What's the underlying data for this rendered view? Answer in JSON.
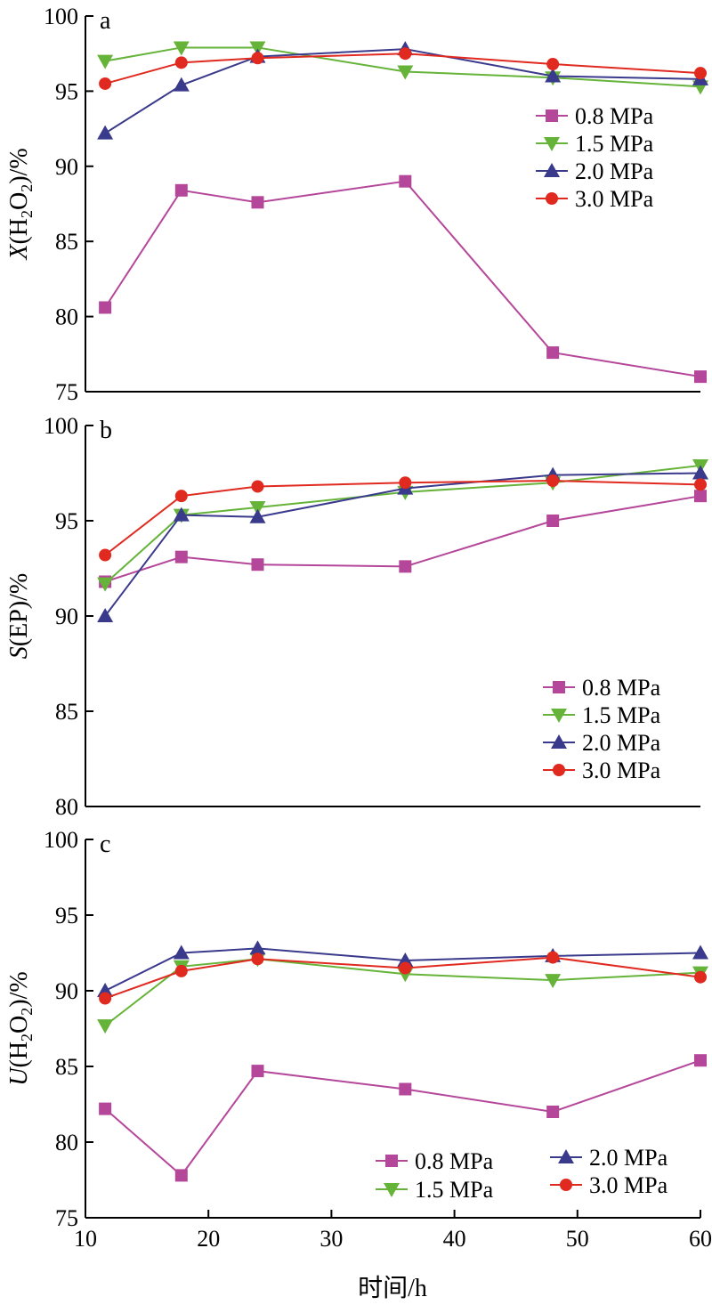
{
  "chart_data": {
    "type": "line",
    "xlabel": "时间/h",
    "xlim": [
      10,
      60
    ],
    "xticks": [
      10,
      20,
      30,
      40,
      50,
      60
    ],
    "x": [
      11.6,
      17.8,
      24,
      36,
      48,
      60
    ],
    "colors": {
      "0.8 MPa": "#b5479b",
      "1.5 MPa": "#66b33a",
      "2.0 MPa": "#3a3a8c",
      "3.0 MPa": "#e0291f"
    },
    "markers": {
      "0.8 MPa": "square",
      "1.5 MPa": "triangle-down",
      "2.0 MPa": "triangle-up",
      "3.0 MPa": "circle"
    },
    "panels": [
      {
        "letter": "a",
        "ylabel_var": "X",
        "ylabel_rest": "(H",
        "ylabel_sub1": "2",
        "ylabel_mid": "O",
        "ylabel_sub2": "2",
        "ylabel_end": ")/%",
        "ylim": [
          75,
          100
        ],
        "yticks": [
          75,
          80,
          85,
          90,
          95,
          100
        ],
        "legend_placement": "right",
        "series": [
          {
            "name": "0.8 MPa",
            "values": [
              80.6,
              88.4,
              87.6,
              89.0,
              77.6,
              76.0
            ]
          },
          {
            "name": "1.5 MPa",
            "values": [
              97.0,
              97.9,
              97.9,
              96.3,
              95.9,
              95.3
            ]
          },
          {
            "name": "2.0 MPa",
            "values": [
              92.2,
              95.4,
              97.3,
              97.8,
              96.0,
              95.8
            ]
          },
          {
            "name": "3.0 MPa",
            "values": [
              95.5,
              96.9,
              97.2,
              97.5,
              96.8,
              96.2
            ]
          }
        ]
      },
      {
        "letter": "b",
        "ylabel_var": "S",
        "ylabel_rest": "(EP)/%",
        "ylim": [
          80,
          100
        ],
        "yticks": [
          80,
          85,
          90,
          95,
          100
        ],
        "legend_placement": "bottom-right",
        "series": [
          {
            "name": "0.8 MPa",
            "values": [
              91.8,
              93.1,
              92.7,
              92.6,
              95.0,
              96.3
            ]
          },
          {
            "name": "1.5 MPa",
            "values": [
              91.7,
              95.3,
              95.7,
              96.5,
              97.0,
              97.9
            ]
          },
          {
            "name": "2.0 MPa",
            "values": [
              90.0,
              95.3,
              95.2,
              96.7,
              97.4,
              97.5
            ]
          },
          {
            "name": "3.0 MPa",
            "values": [
              93.2,
              96.3,
              96.8,
              97.0,
              97.1,
              96.9
            ]
          }
        ]
      },
      {
        "letter": "c",
        "ylabel_var": "U",
        "ylabel_rest": "(H",
        "ylabel_sub1": "2",
        "ylabel_mid": "O",
        "ylabel_sub2": "2",
        "ylabel_end": ")/%",
        "ylim": [
          75,
          100
        ],
        "yticks": [
          75,
          80,
          85,
          90,
          95,
          100
        ],
        "legend_placement": "bottom, two columns",
        "series": [
          {
            "name": "0.8 MPa",
            "values": [
              82.2,
              77.8,
              84.7,
              83.5,
              82.0,
              85.4
            ]
          },
          {
            "name": "1.5 MPa",
            "values": [
              87.7,
              91.6,
              92.1,
              91.1,
              90.7,
              91.2
            ]
          },
          {
            "name": "2.0 MPa",
            "values": [
              90.0,
              92.5,
              92.8,
              92.0,
              92.3,
              92.5
            ]
          },
          {
            "name": "3.0 MPa",
            "values": [
              89.5,
              91.3,
              92.1,
              91.5,
              92.2,
              90.9
            ]
          }
        ]
      }
    ]
  }
}
